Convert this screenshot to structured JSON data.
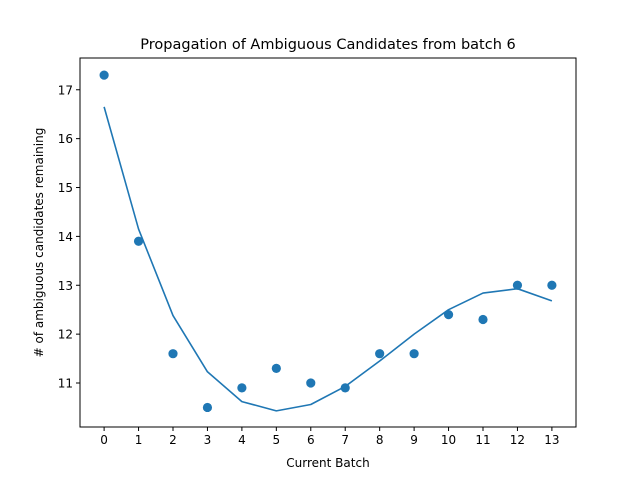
{
  "chart_data": {
    "type": "scatter",
    "title": "Propagation of Ambiguous Candidates from batch 6",
    "xlabel": "Current Batch",
    "ylabel": "# of ambiguous candidates remaining",
    "xlim": [
      -0.7,
      13.7
    ],
    "ylim": [
      10.1,
      17.65
    ],
    "xticks": [
      0,
      1,
      2,
      3,
      4,
      5,
      6,
      7,
      8,
      9,
      10,
      11,
      12,
      13
    ],
    "yticks": [
      11,
      12,
      13,
      14,
      15,
      16,
      17
    ],
    "grid": false,
    "series": [
      {
        "kind": "scatter",
        "color": "#1f77b4",
        "x": [
          0,
          1,
          2,
          3,
          4,
          5,
          6,
          7,
          8,
          9,
          10,
          11,
          12,
          13
        ],
        "y": [
          17.3,
          13.9,
          11.6,
          10.5,
          10.9,
          11.3,
          11.0,
          10.9,
          11.6,
          11.6,
          12.4,
          12.3,
          13.0,
          13.0
        ]
      },
      {
        "kind": "line",
        "color": "#1f77b4",
        "x": [
          0,
          1,
          2,
          3,
          4,
          5,
          6,
          7,
          8,
          9,
          10,
          11,
          12,
          13
        ],
        "y": [
          16.65,
          14.15,
          12.38,
          11.23,
          10.62,
          10.43,
          10.56,
          10.93,
          11.45,
          12.0,
          12.5,
          12.84,
          12.93,
          12.68
        ]
      }
    ]
  }
}
